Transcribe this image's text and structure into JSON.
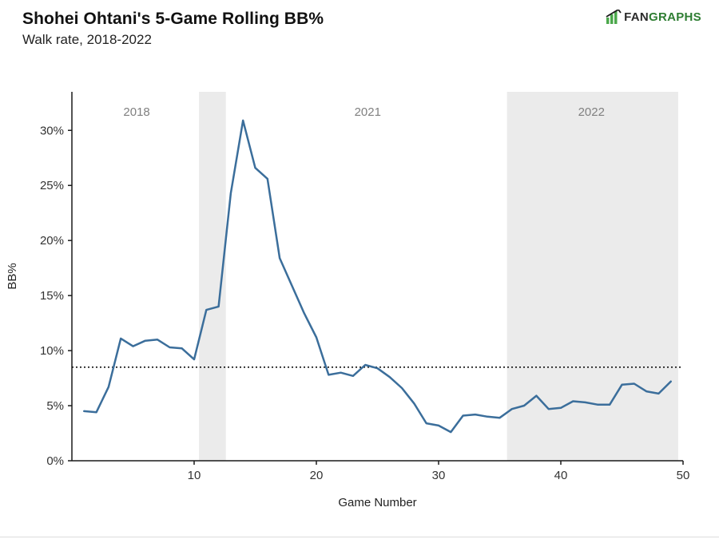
{
  "header": {
    "title": "Shohei Ohtani's 5-Game Rolling BB%",
    "subtitle": "Walk rate, 2018-2022"
  },
  "logo": {
    "fan": "FAN",
    "graphs": "GRAPHS",
    "bar_color": "#4ca84c",
    "trend_color": "#1a1a1a"
  },
  "chart_data": {
    "type": "line",
    "title": "Shohei Ohtani's 5-Game Rolling BB%",
    "subtitle": "Walk rate, 2018-2022",
    "xlabel": "Game Number",
    "ylabel": "BB%",
    "xlim": [
      0,
      50
    ],
    "ylim": [
      0,
      33.5
    ],
    "x_ticks": [
      10,
      20,
      30,
      40,
      50
    ],
    "y_ticks": [
      0,
      5,
      10,
      15,
      20,
      25,
      30
    ],
    "y_tick_suffix": "%",
    "grid": false,
    "legend": "none",
    "line_color": "#3b6e9b",
    "line_width": 2.5,
    "axis_color": "#1a1a1a",
    "tick_label_color": "#333333",
    "region_color": "#ebebeb",
    "season_label_color": "#808080",
    "reference_line": {
      "value": 8.5,
      "color": "#111111",
      "style": "dotted"
    },
    "shaded_regions": [
      {
        "start": 10.4,
        "end": 12.6
      },
      {
        "start": 35.6,
        "end": 49.6
      }
    ],
    "season_labels": [
      {
        "text": "2018",
        "x": 5.3
      },
      {
        "text": "2021",
        "x": 24.2
      },
      {
        "text": "2022",
        "x": 42.5
      }
    ],
    "x": [
      1,
      2,
      3,
      4,
      5,
      6,
      7,
      8,
      9,
      10,
      11,
      12,
      13,
      14,
      15,
      16,
      17,
      18,
      19,
      20,
      21,
      22,
      23,
      24,
      25,
      26,
      27,
      28,
      29,
      30,
      31,
      32,
      33,
      34,
      35,
      36,
      37,
      38,
      39,
      40,
      41,
      42,
      43,
      44,
      45,
      46,
      47,
      48,
      49
    ],
    "values": [
      4.5,
      4.4,
      6.7,
      11.1,
      10.4,
      10.9,
      11.0,
      10.3,
      10.2,
      9.2,
      13.7,
      14.0,
      24.3,
      30.9,
      26.6,
      25.6,
      18.4,
      15.9,
      13.4,
      11.2,
      7.8,
      8.0,
      7.7,
      8.7,
      8.4,
      7.6,
      6.6,
      5.2,
      3.4,
      3.2,
      2.6,
      4.1,
      4.2,
      4.0,
      3.9,
      4.7,
      5.0,
      5.9,
      4.7,
      4.8,
      5.4,
      5.3,
      5.1,
      5.1,
      6.9,
      7.0,
      6.3,
      6.1,
      7.2
    ]
  }
}
